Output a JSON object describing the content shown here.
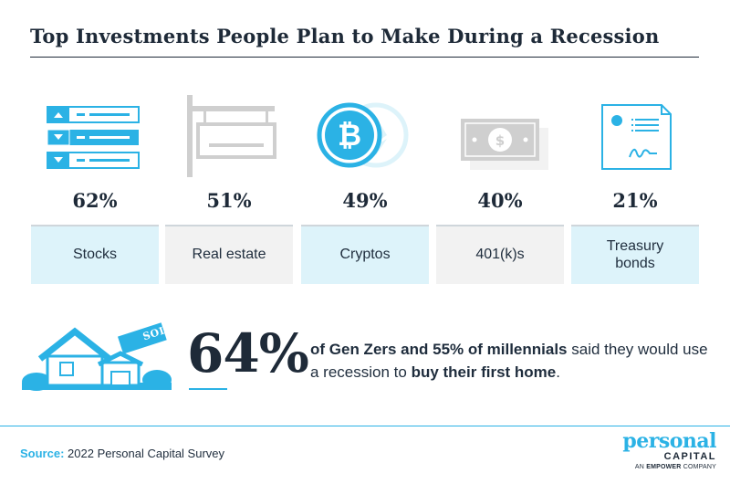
{
  "title": "Top Investments People Plan to Make During a Recession",
  "items": [
    {
      "percent": "62%",
      "label": "Stocks",
      "icon": "stocks-list-icon"
    },
    {
      "percent": "51%",
      "label": "Real estate",
      "icon": "real-estate-sign-icon"
    },
    {
      "percent": "49%",
      "label": "Cryptos",
      "icon": "bitcoin-icon"
    },
    {
      "percent": "40%",
      "label": "401(k)s",
      "icon": "cash-bill-icon"
    },
    {
      "percent": "21%",
      "label": "Treasury bonds",
      "icon": "bond-certificate-icon"
    }
  ],
  "highlight": {
    "sign_text": "SOLD",
    "percent": "64%",
    "text_bold_1": "of Gen Zers and 55% of millennials",
    "text_1": " said they would use a recession to ",
    "text_bold_2": "buy their first home",
    "text_2": "."
  },
  "source": {
    "label": "Source:",
    "text": "2022 Personal Capital Survey"
  },
  "logo": {
    "word": "personal",
    "sub": "CAPITAL",
    "tag_pre": "AN",
    "tag_brand": "EMPOWER",
    "tag_post": "COMPANY"
  },
  "colors": {
    "accent": "#2bb2e5",
    "dark": "#1e2a38",
    "light_blue": "#ddf3fa",
    "light_gray": "#f2f2f2"
  }
}
